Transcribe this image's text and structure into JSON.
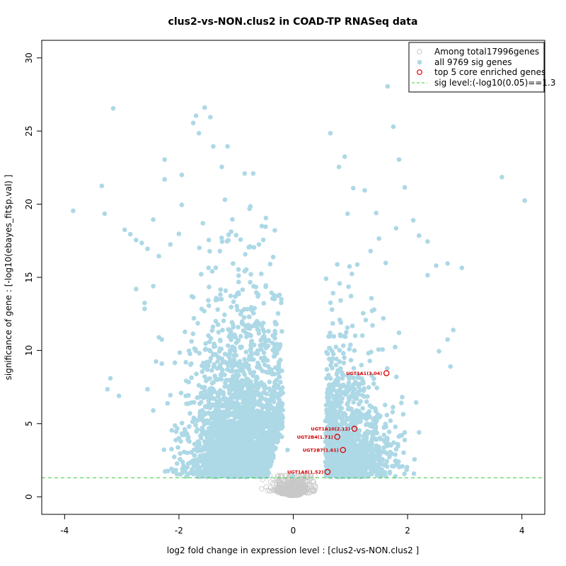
{
  "chart_data": {
    "type": "scatter",
    "title": "clus2-vs-NON.clus2 in COAD-TP RNASeq data",
    "xlabel": "log2 fold change in expression level : [clus2-vs-NON.clus2 ]",
    "ylabel": "significance of gene : [-log10(ebayes_fit$p.val) ]",
    "xlim": [
      -4.4,
      4.4
    ],
    "ylim": [
      -1.2,
      31.2
    ],
    "x_ticks": [
      -4,
      -2,
      0,
      2,
      4
    ],
    "y_ticks": [
      0,
      5,
      10,
      15,
      20,
      25,
      30
    ],
    "threshold": 1.3,
    "colors": {
      "all_genes": "#c8c8c8",
      "sig_genes": "#add8e6",
      "core_genes": "#dd0000",
      "threshold": "#33cc33"
    },
    "legend": {
      "position": "top-right",
      "entries": [
        "Among total17996genes",
        "all 9769 sig genes",
        "top 5 core enriched genes",
        "sig level:(-log10(0.05)==1.3"
      ]
    },
    "series": [
      {
        "name": "sig genes (outliers)",
        "points": [
          [
            -3.85,
            19.55
          ],
          [
            -3.35,
            21.25
          ],
          [
            -3.3,
            19.35
          ],
          [
            -3.15,
            26.55
          ],
          [
            -3.2,
            8.1
          ],
          [
            -3.25,
            7.35
          ],
          [
            -3.05,
            6.9
          ],
          [
            -2.95,
            18.25
          ],
          [
            -2.85,
            17.95
          ],
          [
            -2.75,
            17.55
          ],
          [
            -2.65,
            17.35
          ],
          [
            -2.55,
            16.95
          ],
          [
            -2.75,
            14.2
          ],
          [
            -2.6,
            13.25
          ],
          [
            -2.6,
            12.85
          ],
          [
            -2.45,
            18.95
          ],
          [
            -2.35,
            16.45
          ],
          [
            -2.45,
            14.4
          ],
          [
            -2.35,
            10.9
          ],
          [
            -2.3,
            10.75
          ],
          [
            -2.4,
            9.25
          ],
          [
            -2.3,
            9.1
          ],
          [
            -2.45,
            5.9
          ],
          [
            -2.55,
            7.35
          ],
          [
            -2.25,
            23.05
          ],
          [
            -2.25,
            21.7
          ],
          [
            -2.15,
            17.25
          ],
          [
            -2.15,
            6.95
          ],
          [
            -2.05,
            4.45
          ],
          [
            -1.95,
            22.0
          ],
          [
            -1.95,
            19.95
          ],
          [
            -1.75,
            25.55
          ],
          [
            -1.7,
            26.05
          ],
          [
            -1.65,
            24.85
          ],
          [
            -1.55,
            26.6
          ],
          [
            -1.45,
            25.95
          ],
          [
            -1.4,
            23.95
          ],
          [
            -1.25,
            22.55
          ],
          [
            -1.15,
            23.95
          ],
          [
            -0.85,
            22.1
          ],
          [
            -0.7,
            22.1
          ],
          [
            -0.55,
            18.5
          ],
          [
            -0.6,
            17.25
          ],
          [
            -0.75,
            19.85
          ],
          [
            -0.35,
            6.0
          ],
          [
            -0.2,
            4.1
          ],
          [
            -0.1,
            3.2
          ],
          [
            0.0,
            1.4
          ],
          [
            0.65,
            24.85
          ],
          [
            0.8,
            22.55
          ],
          [
            0.9,
            23.25
          ],
          [
            0.95,
            19.35
          ],
          [
            1.05,
            21.1
          ],
          [
            1.25,
            20.95
          ],
          [
            1.45,
            19.4
          ],
          [
            1.5,
            17.65
          ],
          [
            1.65,
            28.05
          ],
          [
            1.75,
            25.3
          ],
          [
            1.75,
            25.3
          ],
          [
            1.85,
            23.05
          ],
          [
            1.8,
            18.35
          ],
          [
            1.95,
            21.15
          ],
          [
            2.1,
            18.9
          ],
          [
            2.2,
            17.85
          ],
          [
            2.35,
            17.45
          ],
          [
            2.35,
            15.15
          ],
          [
            2.5,
            15.8
          ],
          [
            2.7,
            15.95
          ],
          [
            2.95,
            15.65
          ],
          [
            2.55,
            9.95
          ],
          [
            2.7,
            10.75
          ],
          [
            2.8,
            11.4
          ],
          [
            2.75,
            8.9
          ],
          [
            3.65,
            21.85
          ],
          [
            4.05,
            20.25
          ],
          [
            2.15,
            6.45
          ],
          [
            2.2,
            4.4
          ],
          [
            1.95,
            4.4
          ],
          [
            1.9,
            4.2
          ],
          [
            1.8,
            3.25
          ],
          [
            1.7,
            5.2
          ],
          [
            1.45,
            3.9
          ]
        ]
      }
    ],
    "core_genes": [
      {
        "label": "UGT1A1(3.04)",
        "x": 1.63,
        "y": 8.45
      },
      {
        "label": "UGT1A10(2.12)",
        "x": 1.07,
        "y": 4.65
      },
      {
        "label": "UGT2B4(1.71)",
        "x": 0.77,
        "y": 4.1
      },
      {
        "label": "UGT2B7(1.61)",
        "x": 0.87,
        "y": 3.2
      },
      {
        "label": "UGT1A8(1.52)",
        "x": 0.6,
        "y": 1.7
      }
    ]
  }
}
